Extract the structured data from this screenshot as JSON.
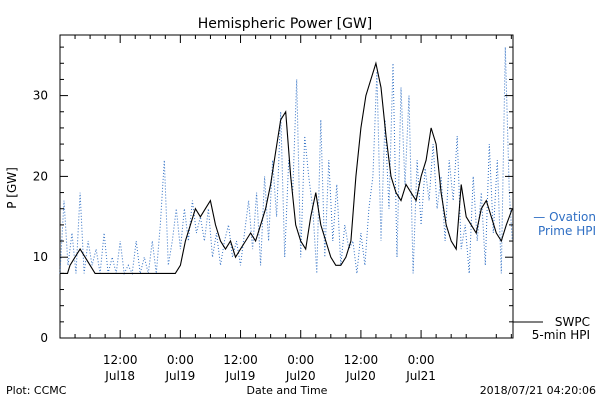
{
  "chart_data": {
    "type": "line",
    "title": "Hemispheric Power [GW]",
    "xlabel": "Date and Time",
    "ylabel": "P [GW]",
    "ylim": [
      0,
      37.5
    ],
    "xlim": [
      0,
      90.33
    ],
    "yticks": [
      0,
      10,
      20,
      30
    ],
    "xticks": [
      {
        "x": 12,
        "label1": "12:00",
        "label2": "Jul18"
      },
      {
        "x": 24,
        "label1": "0:00",
        "label2": "Jul19"
      },
      {
        "x": 36,
        "label1": "12:00",
        "label2": "Jul19"
      },
      {
        "x": 48,
        "label1": "0:00",
        "label2": "Jul20"
      },
      {
        "x": 60,
        "label1": "12:00",
        "label2": "Jul20"
      },
      {
        "x": 72,
        "label1": "0:00",
        "label2": "Jul21"
      }
    ],
    "grid": false,
    "series": [
      {
        "name": "Ovation Prime HPI",
        "style": "dotted",
        "color": "#2f6fc4",
        "legend_lines": [
          "— Ovation",
          "Prime HPI"
        ],
        "x": [
          0,
          0.8,
          1.6,
          2.4,
          3.2,
          4,
          4.8,
          5.6,
          6.4,
          7.2,
          8,
          8.8,
          9.6,
          10.4,
          11.2,
          12,
          12.8,
          13.6,
          14.4,
          15.2,
          16,
          16.8,
          17.6,
          18.4,
          19.2,
          20,
          20.8,
          21.6,
          22.4,
          23.2,
          24,
          24.8,
          25.6,
          26.4,
          27.2,
          28,
          28.8,
          29.6,
          30.4,
          31.2,
          32,
          32.8,
          33.6,
          34.4,
          35.2,
          36,
          36.8,
          37.6,
          38.4,
          39.2,
          40,
          40.8,
          41.6,
          42.4,
          43.2,
          44,
          44.8,
          45.6,
          46.4,
          47.2,
          48,
          48.8,
          49.6,
          50.4,
          51.2,
          52,
          52.8,
          53.6,
          54.4,
          55.2,
          56,
          56.8,
          57.6,
          58.4,
          59.2,
          60,
          60.8,
          61.6,
          62.4,
          63.2,
          64,
          64.8,
          65.6,
          66.4,
          67.2,
          68,
          68.8,
          69.6,
          70.4,
          71.2,
          72,
          72.8,
          73.6,
          74.4,
          75.2,
          76,
          76.8,
          77.6,
          78.4,
          79.2,
          80,
          80.8,
          81.6,
          82.4,
          83.2,
          84,
          84.8,
          85.6,
          86.4,
          87.2,
          88,
          88.8,
          89.6,
          90.2
        ],
        "values": [
          8,
          17,
          9,
          13,
          8,
          18,
          8,
          12,
          9,
          11,
          8,
          13,
          8,
          10,
          8,
          12,
          8,
          9,
          8,
          12,
          8,
          10,
          8,
          12,
          8,
          14,
          22,
          9,
          12,
          16,
          11,
          16,
          12,
          17,
          13,
          15,
          12,
          16,
          10,
          13,
          9,
          12,
          14,
          10,
          12,
          9,
          13,
          17,
          11,
          18,
          9,
          20,
          12,
          22,
          15,
          28,
          10,
          22,
          18,
          32,
          10,
          25,
          20,
          16,
          8,
          27,
          10,
          22,
          12,
          19,
          9,
          14,
          11,
          12,
          8,
          13,
          9,
          16,
          20,
          33,
          12,
          27,
          16,
          34,
          10,
          31,
          19,
          30,
          8,
          22,
          14,
          21,
          17,
          24,
          16,
          20,
          12,
          22,
          17,
          25,
          11,
          14,
          8,
          20,
          12,
          18,
          9,
          24,
          13,
          22,
          8,
          36,
          18,
          12
        ]
      },
      {
        "name": "SWPC 5-min HPI",
        "style": "solid",
        "color": "#000000",
        "legend_lines": [
          "SWPC",
          "5-min HPI"
        ],
        "x": [
          0,
          1.5,
          2,
          3,
          4,
          5,
          6,
          7,
          8,
          9,
          11,
          13,
          15,
          17,
          19,
          21,
          23,
          24,
          25,
          26,
          27,
          28,
          29,
          30,
          31,
          32,
          33,
          34,
          35,
          36,
          37,
          38,
          39,
          40,
          41,
          42,
          43,
          44,
          45,
          46,
          47,
          48,
          49,
          50,
          51,
          52,
          53,
          54,
          55,
          56,
          57,
          58,
          59,
          60,
          61,
          62,
          63,
          64,
          65,
          66,
          67,
          68,
          69,
          70,
          71,
          72,
          73,
          74,
          75,
          76,
          77,
          78,
          79,
          80,
          81,
          82,
          83,
          84,
          85,
          86,
          87,
          88,
          89,
          90.2
        ],
        "values": [
          8,
          8,
          9,
          10,
          11,
          10,
          9,
          8,
          8,
          8,
          8,
          8,
          8,
          8,
          8,
          8,
          8,
          9,
          12,
          14,
          16,
          15,
          16,
          17,
          14,
          12,
          11,
          12,
          10,
          11,
          12,
          13,
          12,
          14,
          16,
          19,
          23,
          27,
          28,
          20,
          14,
          12,
          11,
          15,
          18,
          14,
          12,
          10,
          9,
          9,
          10,
          12,
          20,
          26,
          30,
          32,
          34,
          31,
          25,
          20,
          18,
          17,
          19,
          18,
          17,
          20,
          22,
          26,
          24,
          18,
          14,
          12,
          11,
          19,
          15,
          14,
          13,
          16,
          17,
          15,
          13,
          12,
          14,
          16
        ]
      }
    ]
  },
  "footer": {
    "left": "Plot: CCMC",
    "center": "Date and Time",
    "right": "2018/07/21 04:20:06"
  }
}
